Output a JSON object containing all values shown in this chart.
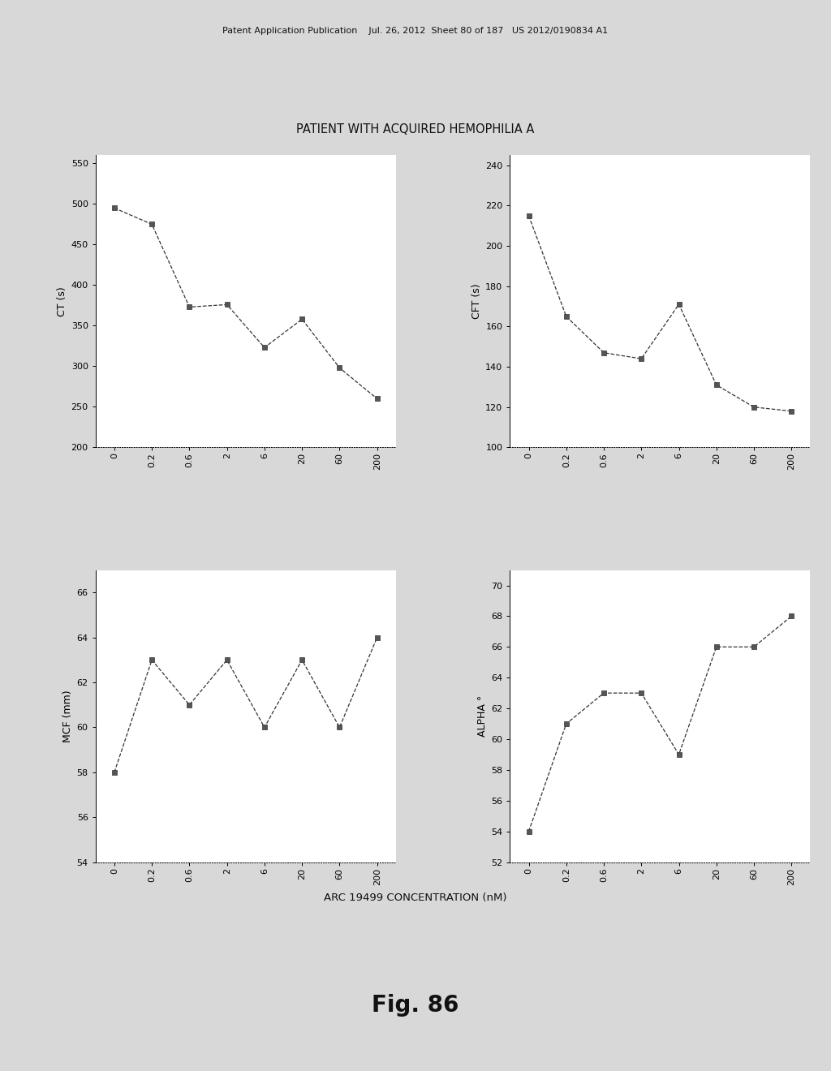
{
  "title": "PATIENT WITH ACQUIRED HEMOPHILIA A",
  "xlabel": "ARC 19499 CONCENTRATION (nM)",
  "fig_caption": "Fig. 86",
  "header_text": "Patent Application Publication    Jul. 26, 2012  Sheet 80 of 187   US 2012/0190834 A1",
  "x_labels": [
    "0",
    "0.2",
    "0.6",
    "2",
    "6",
    "20",
    "60",
    "200"
  ],
  "x_positions": [
    0,
    1,
    2,
    3,
    4,
    5,
    6,
    7
  ],
  "ct": {
    "ylabel": "CT (s)",
    "ylim": [
      200,
      560
    ],
    "yticks": [
      200,
      250,
      300,
      350,
      400,
      450,
      500,
      550
    ],
    "values": [
      495,
      475,
      373,
      376,
      323,
      358,
      298,
      260
    ]
  },
  "cft": {
    "ylabel": "CFT (s)",
    "ylim": [
      100,
      245
    ],
    "yticks": [
      100,
      120,
      140,
      160,
      180,
      200,
      220,
      240
    ],
    "values": [
      215,
      165,
      147,
      144,
      171,
      131,
      120,
      118
    ]
  },
  "mcf": {
    "ylabel": "MCF (mm)",
    "ylim": [
      54,
      67
    ],
    "yticks": [
      54,
      56,
      58,
      60,
      62,
      64,
      66
    ],
    "values": [
      58,
      63,
      61,
      63,
      60,
      63,
      60,
      64
    ]
  },
  "alpha": {
    "ylabel": "ALPHA °",
    "ylim": [
      52,
      71
    ],
    "yticks": [
      52,
      54,
      56,
      58,
      60,
      62,
      64,
      66,
      68,
      70
    ],
    "values": [
      54,
      61,
      63,
      63,
      59,
      66,
      66,
      68
    ]
  },
  "line_color": "#333333",
  "marker_style": "s",
  "marker_size": 4,
  "line_style": "--",
  "background_color": "#ffffff",
  "fig_bg_color": "#d8d8d8"
}
